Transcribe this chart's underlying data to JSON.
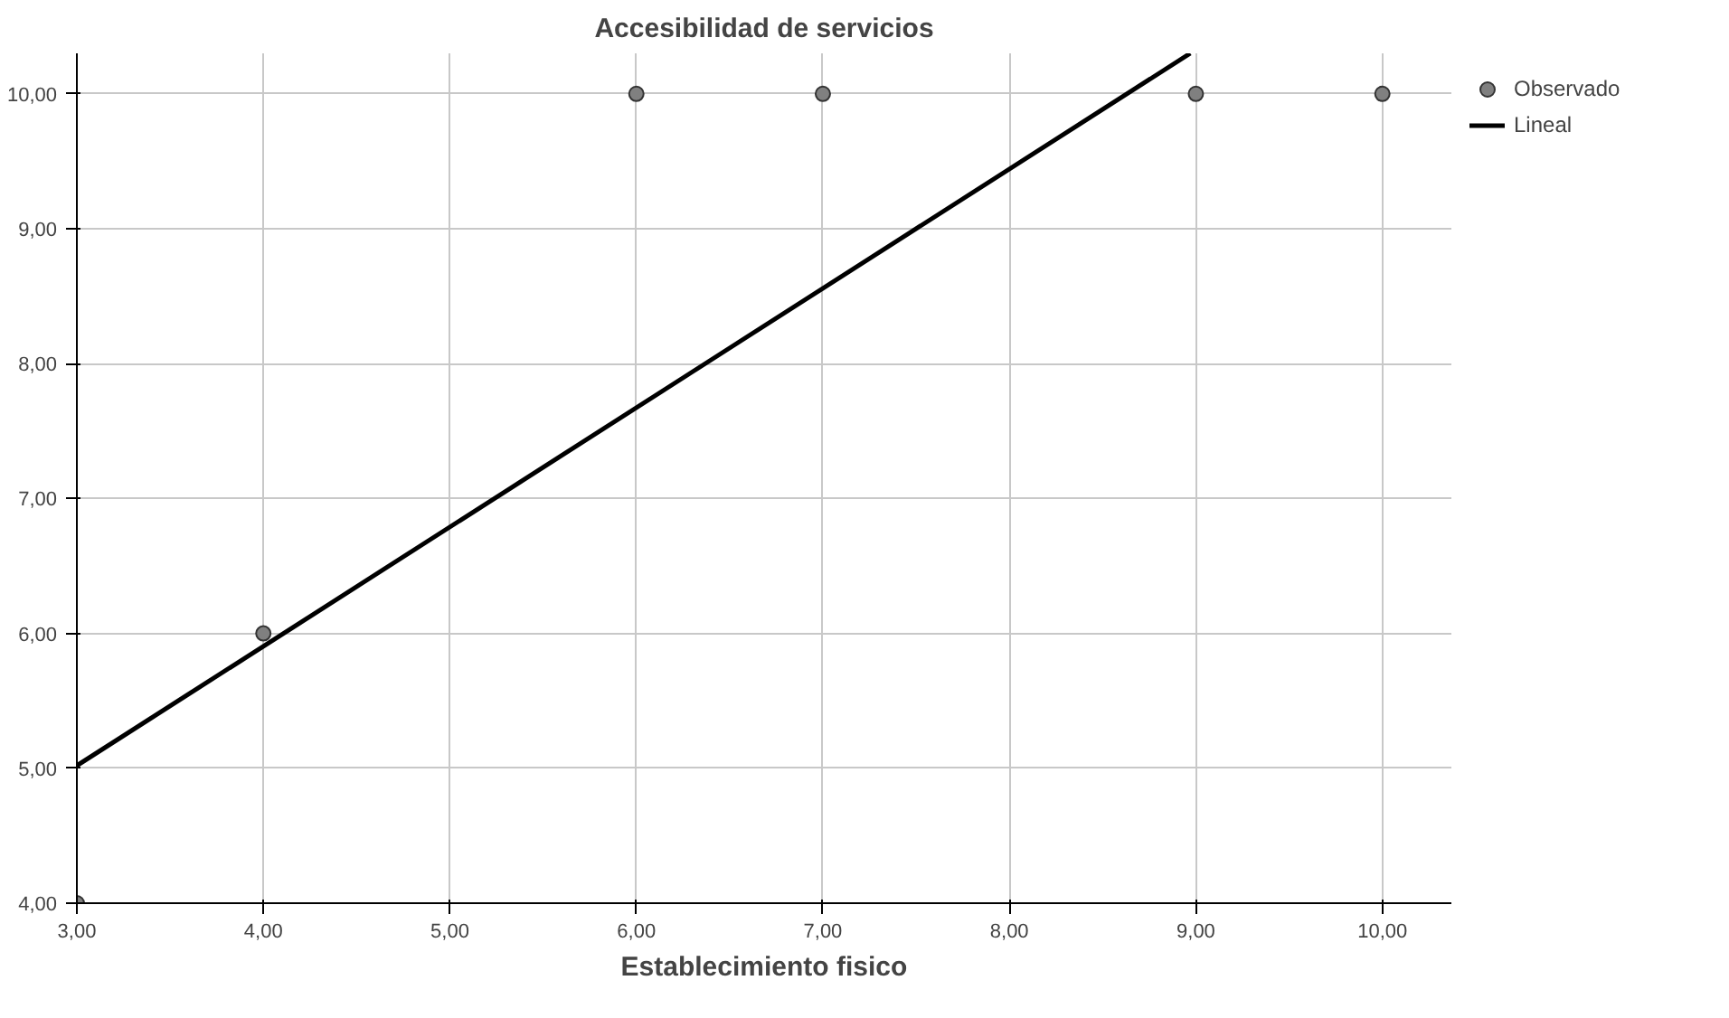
{
  "chart_data": {
    "type": "scatter",
    "title": "Accesibilidad de servicios",
    "xlabel": "Establecimiento fisico",
    "xlim": [
      3,
      10.37
    ],
    "ylim": [
      4,
      10.3
    ],
    "xticks": [
      {
        "value": 3,
        "label": "3,00"
      },
      {
        "value": 4,
        "label": "4,00"
      },
      {
        "value": 5,
        "label": "5,00"
      },
      {
        "value": 6,
        "label": "6,00"
      },
      {
        "value": 7,
        "label": "7,00"
      },
      {
        "value": 8,
        "label": "8,00"
      },
      {
        "value": 9,
        "label": "9,00"
      },
      {
        "value": 10,
        "label": "10,00"
      }
    ],
    "yticks": [
      {
        "value": 4,
        "label": "4,00"
      },
      {
        "value": 5,
        "label": "5,00"
      },
      {
        "value": 6,
        "label": "6,00"
      },
      {
        "value": 7,
        "label": "7,00"
      },
      {
        "value": 8,
        "label": "8,00"
      },
      {
        "value": 9,
        "label": "9,00"
      },
      {
        "value": 10,
        "label": "10,00"
      }
    ],
    "grid": true,
    "legend": "top right",
    "series": [
      {
        "name": "Observado",
        "marker": "circle",
        "color": "#808080",
        "x": [
          3,
          4,
          6,
          7,
          9,
          10
        ],
        "values": [
          4,
          6,
          10,
          10,
          10,
          10
        ]
      },
      {
        "name": "Lineal",
        "type": "line",
        "color": "#000000",
        "x": [
          3,
          8.97
        ],
        "values": [
          5.02,
          10.3
        ]
      }
    ]
  }
}
